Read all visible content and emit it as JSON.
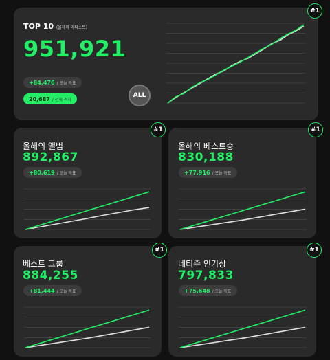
{
  "top": {
    "title": "TOP 10",
    "subtitle": "(올해의 아티스트)",
    "value": "951,921",
    "today_delta": "+84,476",
    "today_label": "/ 오늘 득표",
    "total_delta": "20,687",
    "total_label": "/ 전체 격차",
    "all_label": "ALL",
    "rank": "#1"
  },
  "cards": [
    {
      "title": "올해의 앨범",
      "value": "892,867",
      "delta": "+80,619",
      "delta_label": "/ 오늘 득표",
      "rank": "#1"
    },
    {
      "title": "올해의 베스트송",
      "value": "830,188",
      "delta": "+77,916",
      "delta_label": "/ 오늘 득표",
      "rank": "#1"
    },
    {
      "title": "베스트 그룹",
      "value": "884,255",
      "delta": "+81,444",
      "delta_label": "/ 오늘 득표",
      "rank": "#1"
    },
    {
      "title": "네티즌 인기상",
      "value": "797,833",
      "delta": "+75,648",
      "delta_label": "/ 오늘 득표",
      "rank": "#1"
    }
  ],
  "colors": {
    "accent": "#22ee66",
    "secondary_line": "#e0e0e0",
    "card_bg": "#2a2a2a",
    "page_bg": "#111111"
  },
  "chart_data": [
    {
      "type": "line",
      "series": [
        {
          "values": [
            0,
            0.08,
            0.12,
            0.2,
            0.26,
            0.3,
            0.36,
            0.42,
            0.47,
            0.52,
            0.58,
            0.64,
            0.7,
            0.75,
            0.82,
            0.88,
            0.93,
            1.0
          ]
        },
        {
          "values": [
            0,
            0.07,
            0.13,
            0.19,
            0.25,
            0.31,
            0.37,
            0.41,
            0.48,
            0.53,
            0.57,
            0.63,
            0.69,
            0.76,
            0.8,
            0.87,
            0.92,
            0.98
          ]
        }
      ]
    },
    {
      "type": "line",
      "series": [
        {
          "values": [
            0,
            0.12,
            0.24,
            0.36,
            0.48,
            0.6,
            0.72,
            0.84,
            0.96
          ]
        },
        {
          "values": [
            0,
            0.07,
            0.14,
            0.21,
            0.28,
            0.36,
            0.43,
            0.5,
            0.56
          ]
        }
      ]
    },
    {
      "type": "line",
      "series": [
        {
          "values": [
            0,
            0.12,
            0.24,
            0.36,
            0.48,
            0.6,
            0.72,
            0.84,
            0.96
          ]
        },
        {
          "values": [
            0,
            0.06,
            0.12,
            0.18,
            0.24,
            0.31,
            0.38,
            0.45,
            0.52
          ]
        }
      ]
    },
    {
      "type": "line",
      "series": [
        {
          "values": [
            0,
            0.12,
            0.24,
            0.36,
            0.48,
            0.6,
            0.72,
            0.84,
            0.96
          ]
        },
        {
          "values": [
            0,
            0.06,
            0.12,
            0.18,
            0.24,
            0.31,
            0.38,
            0.45,
            0.52
          ]
        }
      ]
    },
    {
      "type": "line",
      "series": [
        {
          "values": [
            0,
            0.12,
            0.24,
            0.36,
            0.48,
            0.6,
            0.72,
            0.84,
            0.96
          ]
        },
        {
          "values": [
            0,
            0.06,
            0.12,
            0.18,
            0.24,
            0.31,
            0.38,
            0.45,
            0.52
          ]
        }
      ]
    }
  ]
}
